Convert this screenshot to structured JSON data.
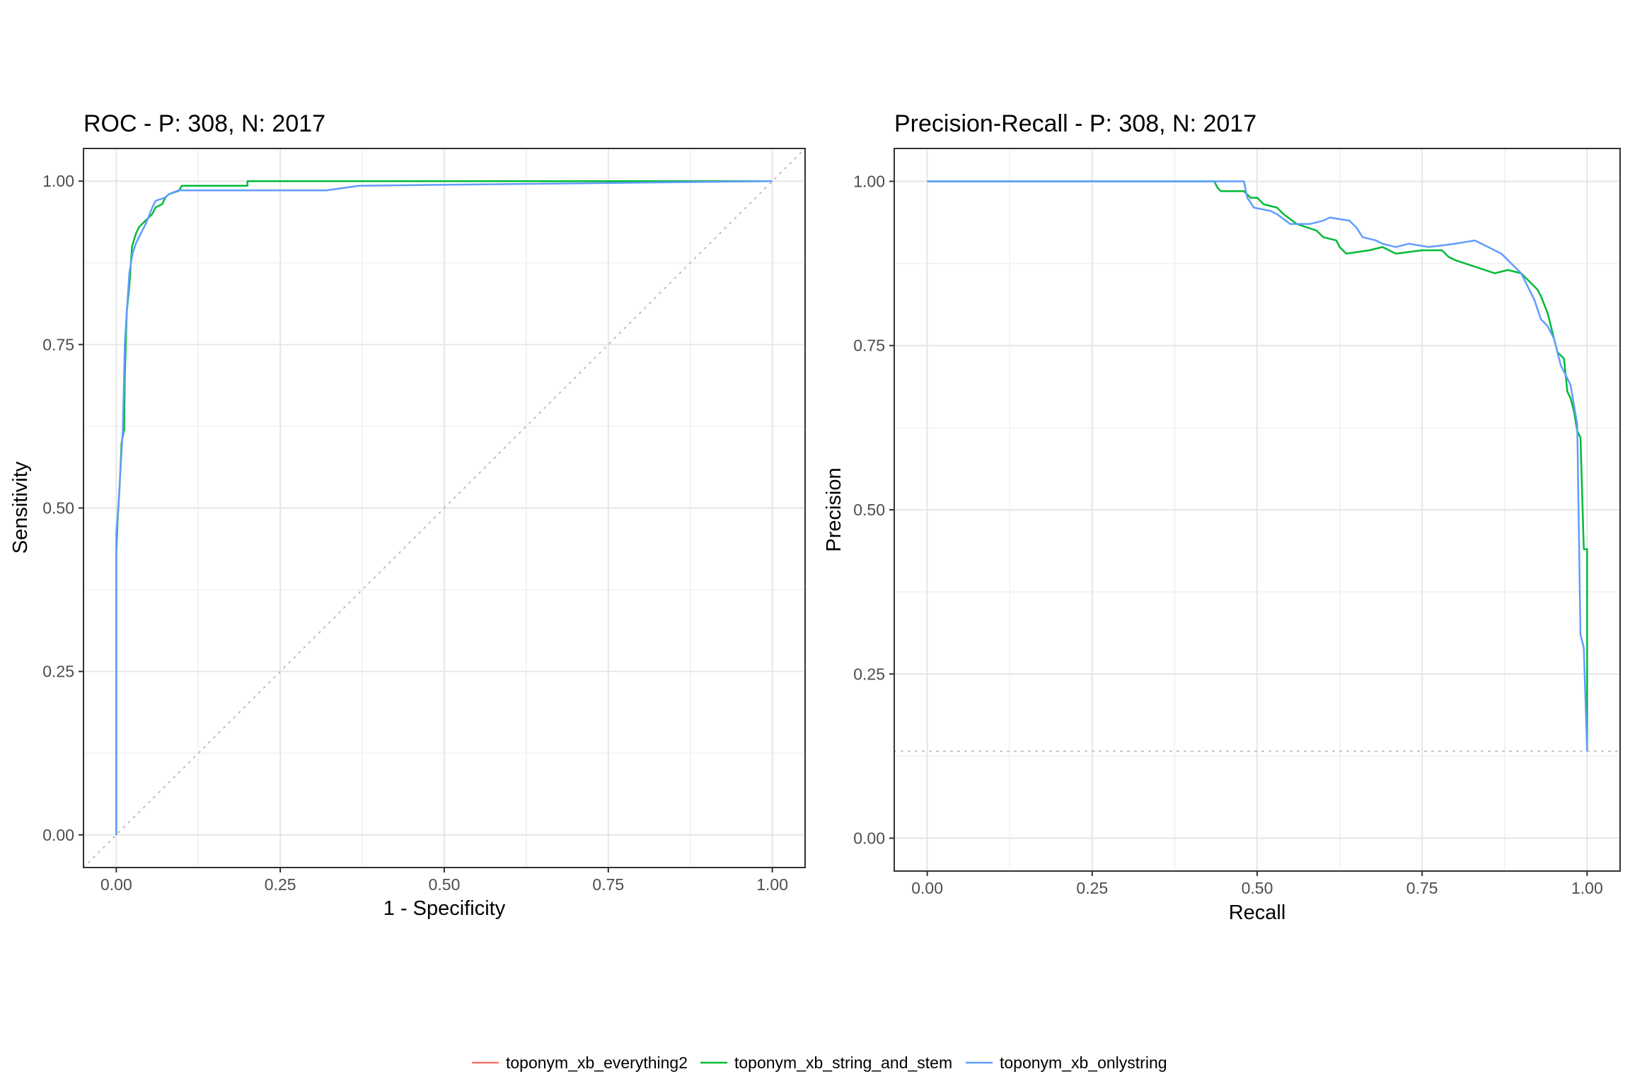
{
  "chart_data": [
    {
      "type": "line",
      "title": "ROC - P: 308, N: 2017",
      "xlabel": "1 - Specificity",
      "ylabel": "Sensitivity",
      "xlim": [
        -0.05,
        1.05
      ],
      "ylim": [
        -0.05,
        1.05
      ],
      "xticks": [
        "0.00",
        "0.25",
        "0.50",
        "0.75",
        "1.00"
      ],
      "yticks": [
        "0.00",
        "0.25",
        "0.50",
        "0.75",
        "1.00"
      ],
      "grid": true,
      "reference_line": {
        "type": "diagonal",
        "points": [
          [
            -0.05,
            -0.05
          ],
          [
            1.05,
            1.05
          ]
        ]
      },
      "series": [
        {
          "name": "toponym_xb_everything2",
          "color": "#F8766D",
          "points": []
        },
        {
          "name": "toponym_xb_string_and_stem",
          "color": "#00BA38",
          "points": [
            [
              0.0,
              0.0
            ],
            [
              0.0,
              0.43
            ],
            [
              0.002,
              0.48
            ],
            [
              0.005,
              0.53
            ],
            [
              0.008,
              0.6
            ],
            [
              0.012,
              0.62
            ],
            [
              0.013,
              0.7
            ],
            [
              0.016,
              0.8
            ],
            [
              0.02,
              0.84
            ],
            [
              0.024,
              0.9
            ],
            [
              0.03,
              0.92
            ],
            [
              0.035,
              0.93
            ],
            [
              0.045,
              0.94
            ],
            [
              0.055,
              0.95
            ],
            [
              0.06,
              0.96
            ],
            [
              0.07,
              0.965
            ],
            [
              0.075,
              0.975
            ],
            [
              0.08,
              0.98
            ],
            [
              0.095,
              0.985
            ],
            [
              0.1,
              0.993
            ],
            [
              0.2,
              0.993
            ],
            [
              0.2,
              1.0
            ],
            [
              1.0,
              1.0
            ]
          ]
        },
        {
          "name": "toponym_xb_onlystring",
          "color": "#619CFF",
          "points": [
            [
              0.0,
              0.0
            ],
            [
              0.0,
              0.46
            ],
            [
              0.003,
              0.5
            ],
            [
              0.006,
              0.55
            ],
            [
              0.01,
              0.62
            ],
            [
              0.013,
              0.75
            ],
            [
              0.016,
              0.8
            ],
            [
              0.02,
              0.86
            ],
            [
              0.025,
              0.89
            ],
            [
              0.03,
              0.905
            ],
            [
              0.035,
              0.915
            ],
            [
              0.045,
              0.935
            ],
            [
              0.055,
              0.96
            ],
            [
              0.06,
              0.97
            ],
            [
              0.075,
              0.975
            ],
            [
              0.08,
              0.98
            ],
            [
              0.095,
              0.986
            ],
            [
              0.32,
              0.986
            ],
            [
              0.37,
              0.993
            ],
            [
              1.0,
              1.0
            ]
          ]
        }
      ]
    },
    {
      "type": "line",
      "title": "Precision-Recall - P: 308, N: 2017",
      "xlabel": "Recall",
      "ylabel": "Precision",
      "xlim": [
        -0.05,
        1.05
      ],
      "ylim": [
        -0.05,
        1.05
      ],
      "xticks": [
        "0.00",
        "0.25",
        "0.50",
        "0.75",
        "1.00"
      ],
      "yticks": [
        "0.00",
        "0.25",
        "0.50",
        "0.75",
        "1.00"
      ],
      "grid": true,
      "reference_line": {
        "type": "horizontal",
        "y": 0.1325
      },
      "series": [
        {
          "name": "toponym_xb_everything2",
          "color": "#F8766D",
          "points": []
        },
        {
          "name": "toponym_xb_string_and_stem",
          "color": "#00BA38",
          "points": [
            [
              0.0,
              1.0
            ],
            [
              0.435,
              1.0
            ],
            [
              0.44,
              0.99
            ],
            [
              0.445,
              0.985
            ],
            [
              0.48,
              0.985
            ],
            [
              0.49,
              0.975
            ],
            [
              0.5,
              0.975
            ],
            [
              0.51,
              0.965
            ],
            [
              0.53,
              0.96
            ],
            [
              0.54,
              0.95
            ],
            [
              0.56,
              0.935
            ],
            [
              0.575,
              0.93
            ],
            [
              0.59,
              0.925
            ],
            [
              0.6,
              0.915
            ],
            [
              0.62,
              0.91
            ],
            [
              0.625,
              0.9
            ],
            [
              0.635,
              0.89
            ],
            [
              0.67,
              0.895
            ],
            [
              0.69,
              0.9
            ],
            [
              0.71,
              0.89
            ],
            [
              0.75,
              0.895
            ],
            [
              0.78,
              0.895
            ],
            [
              0.79,
              0.885
            ],
            [
              0.8,
              0.88
            ],
            [
              0.83,
              0.87
            ],
            [
              0.86,
              0.86
            ],
            [
              0.88,
              0.865
            ],
            [
              0.9,
              0.86
            ],
            [
              0.91,
              0.85
            ],
            [
              0.925,
              0.835
            ],
            [
              0.93,
              0.825
            ],
            [
              0.94,
              0.8
            ],
            [
              0.945,
              0.78
            ],
            [
              0.95,
              0.76
            ],
            [
              0.955,
              0.74
            ],
            [
              0.965,
              0.73
            ],
            [
              0.97,
              0.68
            ],
            [
              0.975,
              0.67
            ],
            [
              0.98,
              0.65
            ],
            [
              0.985,
              0.62
            ],
            [
              0.99,
              0.61
            ],
            [
              0.995,
              0.44
            ],
            [
              1.0,
              0.44
            ],
            [
              1.0,
              0.1325
            ]
          ]
        },
        {
          "name": "toponym_xb_onlystring",
          "color": "#619CFF",
          "points": [
            [
              0.0,
              1.0
            ],
            [
              0.48,
              1.0
            ],
            [
              0.485,
              0.975
            ],
            [
              0.495,
              0.96
            ],
            [
              0.52,
              0.955
            ],
            [
              0.53,
              0.95
            ],
            [
              0.55,
              0.935
            ],
            [
              0.58,
              0.935
            ],
            [
              0.6,
              0.94
            ],
            [
              0.61,
              0.945
            ],
            [
              0.64,
              0.94
            ],
            [
              0.65,
              0.93
            ],
            [
              0.66,
              0.915
            ],
            [
              0.68,
              0.91
            ],
            [
              0.69,
              0.905
            ],
            [
              0.71,
              0.9
            ],
            [
              0.73,
              0.905
            ],
            [
              0.76,
              0.9
            ],
            [
              0.8,
              0.905
            ],
            [
              0.83,
              0.91
            ],
            [
              0.85,
              0.9
            ],
            [
              0.87,
              0.89
            ],
            [
              0.89,
              0.87
            ],
            [
              0.9,
              0.86
            ],
            [
              0.91,
              0.84
            ],
            [
              0.92,
              0.82
            ],
            [
              0.93,
              0.79
            ],
            [
              0.94,
              0.78
            ],
            [
              0.95,
              0.76
            ],
            [
              0.96,
              0.72
            ],
            [
              0.97,
              0.7
            ],
            [
              0.975,
              0.69
            ],
            [
              0.98,
              0.66
            ],
            [
              0.985,
              0.63
            ],
            [
              0.99,
              0.31
            ],
            [
              0.995,
              0.29
            ],
            [
              1.0,
              0.1325
            ]
          ]
        }
      ]
    }
  ],
  "legend": {
    "position": "bottom",
    "items": [
      {
        "label": "toponym_xb_everything2",
        "color": "#F8766D"
      },
      {
        "label": "toponym_xb_string_and_stem",
        "color": "#00BA38"
      },
      {
        "label": "toponym_xb_onlystring",
        "color": "#619CFF"
      }
    ]
  }
}
